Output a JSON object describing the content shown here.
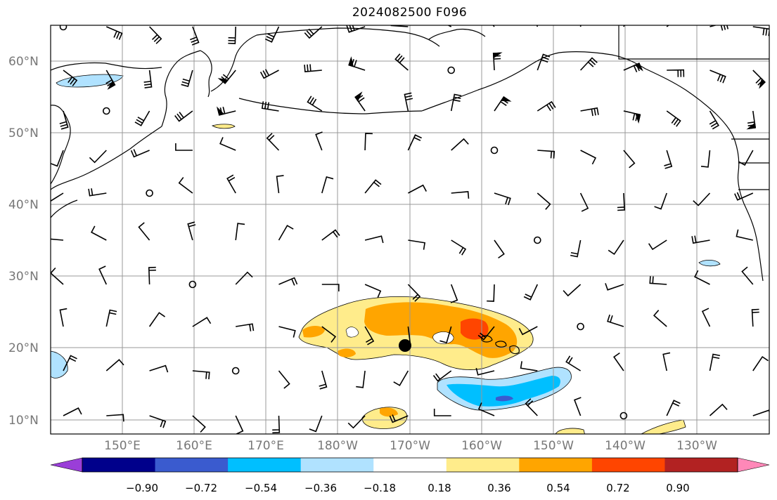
{
  "title": "2024082500 F096",
  "lat_labels": [
    "60°N",
    "50°N",
    "40°N",
    "30°N",
    "20°N",
    "10°N"
  ],
  "lon_labels": [
    "150°E",
    "160°E",
    "170°E",
    "180°W",
    "170°W",
    "160°W",
    "150°W",
    "140°W",
    "130°W"
  ],
  "colorbar": {
    "ticks": [
      "−0.90",
      "−0.72",
      "−0.54",
      "−0.36",
      "−0.18",
      "0.18",
      "0.36",
      "0.54",
      "0.72",
      "0.90"
    ],
    "colors": [
      "#9a3ed8",
      "#00008b",
      "#3a5bcf",
      "#00bfff",
      "#b0e2ff",
      "#ffffff",
      "#ffec8b",
      "#ffa500",
      "#ff4500",
      "#b22222",
      "#ff88b8"
    ]
  },
  "fill_colors": {
    "light_yellow": "#ffec8b",
    "orange": "#ffa500",
    "red_orange": "#ff4500",
    "light_blue": "#b0e2ff",
    "deep_sky_blue": "#00bfff",
    "royal_blue": "#3a5bcf"
  }
}
